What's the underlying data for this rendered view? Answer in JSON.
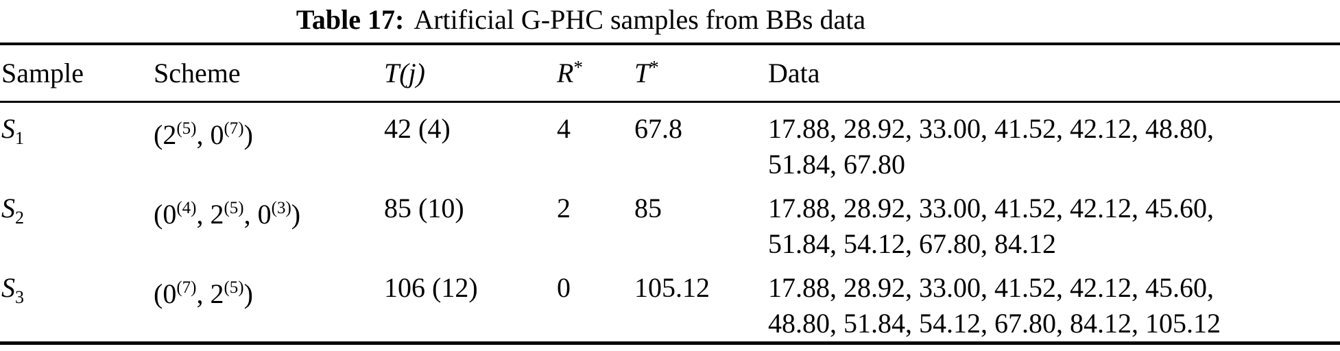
{
  "title": {
    "prefix": "Table 17:",
    "text": "Artificial G-PHC samples from BBs data"
  },
  "colors": {
    "text": "#000000",
    "background": "#ffffff",
    "rule": "#000000"
  },
  "table": {
    "headers": [
      {
        "text": "Sample",
        "italic": false
      },
      {
        "text": "Scheme",
        "italic": false
      },
      {
        "text": "T(j)",
        "italic": true
      },
      {
        "text": "R",
        "sup": "*",
        "italic": true
      },
      {
        "text": "T",
        "sup": "*",
        "italic": true
      },
      {
        "text": "Data",
        "italic": false
      }
    ],
    "rows": [
      {
        "sample": {
          "symbol": "S",
          "subscript": "1"
        },
        "scheme": {
          "parts": [
            {
              "base": "2",
              "exp": "5"
            },
            {
              "base": "0",
              "exp": "7"
            }
          ]
        },
        "t_j": "42 (4)",
        "r_star": "4",
        "t_star": "67.8",
        "data_lines": [
          "17.88, 28.92, 33.00, 41.52, 42.12, 48.80,",
          "51.84, 67.80"
        ]
      },
      {
        "sample": {
          "symbol": "S",
          "subscript": "2"
        },
        "scheme": {
          "parts": [
            {
              "base": "0",
              "exp": "4"
            },
            {
              "base": "2",
              "exp": "5"
            },
            {
              "base": "0",
              "exp": "3"
            }
          ]
        },
        "t_j": "85 (10)",
        "r_star": "2",
        "t_star": "85",
        "data_lines": [
          "17.88, 28.92, 33.00, 41.52, 42.12, 45.60,",
          "51.84, 54.12, 67.80, 84.12"
        ]
      },
      {
        "sample": {
          "symbol": "S",
          "subscript": "3"
        },
        "scheme": {
          "parts": [
            {
              "base": "0",
              "exp": "7"
            },
            {
              "base": "2",
              "exp": "5"
            }
          ]
        },
        "t_j": "106 (12)",
        "r_star": "0",
        "t_star": "105.12",
        "data_lines": [
          "17.88, 28.92, 33.00, 41.52, 42.12, 45.60,",
          "48.80, 51.84, 54.12, 67.80, 84.12, 105.12"
        ]
      }
    ]
  }
}
